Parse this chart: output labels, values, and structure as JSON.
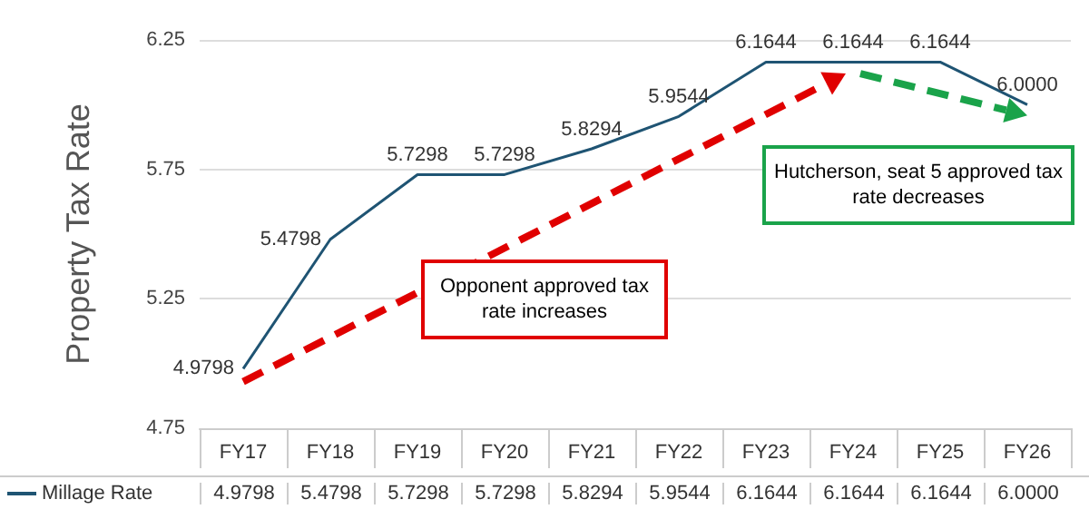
{
  "chart_data": {
    "type": "line",
    "ylabel": "Property Tax Rate",
    "categories": [
      "FY17",
      "FY18",
      "FY19",
      "FY20",
      "FY21",
      "FY22",
      "FY23",
      "FY24",
      "FY25",
      "FY26"
    ],
    "series": [
      {
        "name": "Millage Rate",
        "color": "#1f5473",
        "values": [
          4.9798,
          5.4798,
          5.7298,
          5.7298,
          5.8294,
          5.9544,
          6.1644,
          6.1644,
          6.1644,
          6.0
        ]
      }
    ],
    "value_labels": [
      "4.9798",
      "5.4798",
      "5.7298",
      "5.7298",
      "5.8294",
      "5.9544",
      "6.1644",
      "6.1644",
      "6.1644",
      "6.0000"
    ],
    "ylim": [
      4.75,
      6.25
    ],
    "yticks": [
      4.75,
      5.25,
      5.75,
      6.25
    ],
    "grid": "y",
    "legend": "bottom",
    "marker": "none",
    "annotations": [
      "Opponent approved tax rate increases",
      "Hutcherson, seat 5 approved tax rate decreases"
    ]
  }
}
